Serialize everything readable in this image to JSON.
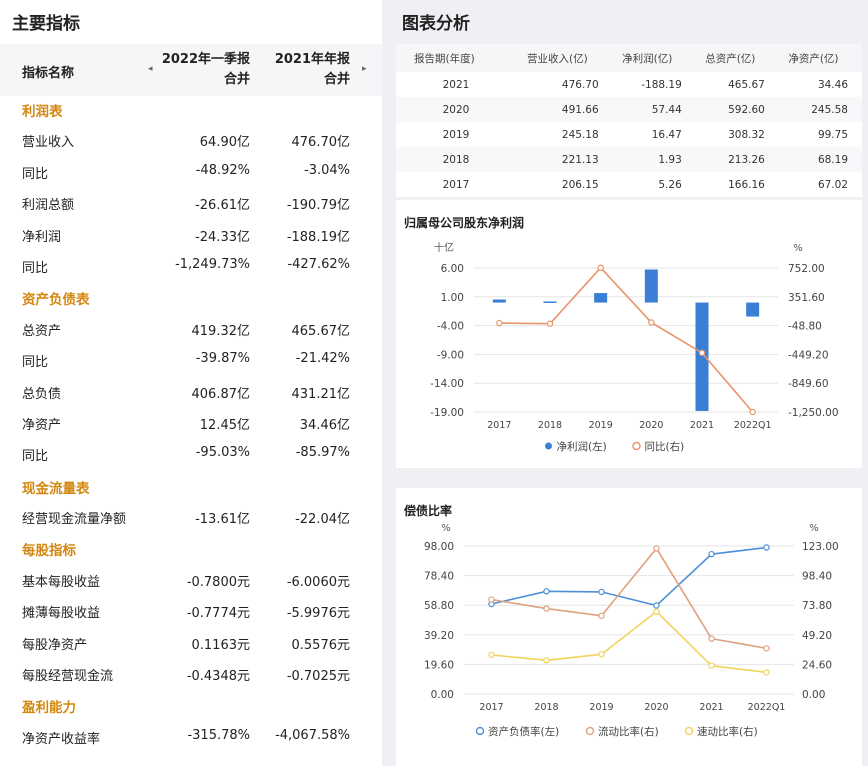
{
  "indicators": {
    "title": "主要指标",
    "header": {
      "name": "指标名称",
      "col1": "2022年一季报合并",
      "col1_a": "2022年一季报",
      "col1_b": "合并",
      "col2_a": "2021年年报",
      "col2_b": "合并"
    },
    "rows": [
      {
        "type": "section",
        "label": "利润表"
      },
      {
        "label": "营业收入",
        "v1": "64.90亿",
        "v2": "476.70亿"
      },
      {
        "label": "同比",
        "v1": "-48.92%",
        "v2": "-3.04%"
      },
      {
        "label": "利润总额",
        "v1": "-26.61亿",
        "v2": "-190.79亿"
      },
      {
        "label": "净利润",
        "v1": "-24.33亿",
        "v2": "-188.19亿"
      },
      {
        "label": "同比",
        "v1": "-1,249.73%",
        "v2": "-427.62%"
      },
      {
        "type": "section",
        "label": "资产负债表"
      },
      {
        "label": "总资产",
        "v1": "419.32亿",
        "v2": "465.67亿"
      },
      {
        "label": "同比",
        "v1": "-39.87%",
        "v2": "-21.42%"
      },
      {
        "label": "总负债",
        "v1": "406.87亿",
        "v2": "431.21亿"
      },
      {
        "label": "净资产",
        "v1": "12.45亿",
        "v2": "34.46亿"
      },
      {
        "label": "同比",
        "v1": "-95.03%",
        "v2": "-85.97%"
      },
      {
        "type": "section",
        "label": "现金流量表"
      },
      {
        "label": "经营现金流量净额",
        "v1": "-13.61亿",
        "v2": "-22.04亿"
      },
      {
        "type": "section",
        "label": "每股指标"
      },
      {
        "label": "基本每股收益",
        "v1": "-0.7800元",
        "v2": "-6.0060元"
      },
      {
        "label": "摊薄每股收益",
        "v1": "-0.7774元",
        "v2": "-5.9976元"
      },
      {
        "label": "每股净资产",
        "v1": "0.1163元",
        "v2": "0.5576元"
      },
      {
        "label": "每股经营现金流",
        "v1": "-0.4348元",
        "v2": "-0.7025元"
      },
      {
        "type": "section",
        "label": "盈利能力"
      },
      {
        "label": "净资产收益率",
        "v1": "-315.78%",
        "v2": "-4,067.58%"
      }
    ]
  },
  "analysis": {
    "title": "图表分析",
    "table": {
      "headers": [
        "报告期(年度)",
        "营业收入(亿)",
        "净利润(亿)",
        "总资产(亿)",
        "净资产(亿)"
      ],
      "rows": [
        [
          "2021",
          "476.70",
          "-188.19",
          "465.67",
          "34.46"
        ],
        [
          "2020",
          "491.66",
          "57.44",
          "592.60",
          "245.58"
        ],
        [
          "2019",
          "245.18",
          "16.47",
          "308.32",
          "99.75"
        ],
        [
          "2018",
          "221.13",
          "1.93",
          "213.26",
          "68.19"
        ],
        [
          "2017",
          "206.15",
          "5.26",
          "166.16",
          "67.02"
        ]
      ]
    }
  },
  "chart_data": [
    {
      "type": "bar",
      "title": "归属母公司股东净利润",
      "categories": [
        "2017",
        "2018",
        "2019",
        "2020",
        "2021",
        "2022Q1"
      ],
      "left_unit": "十亿",
      "right_unit": "%",
      "left_ticks": [
        "6.00",
        "1.00",
        "-4.00",
        "-9.00",
        "-14.00",
        "-19.00"
      ],
      "right_ticks": [
        "752.00",
        "351.60",
        "-48.80",
        "-449.20",
        "-849.60",
        "-1,250.00"
      ],
      "ylim_left": [
        -19,
        6
      ],
      "ylim_right": [
        -1250,
        752
      ],
      "series": [
        {
          "name": "净利润(左)",
          "type": "bar",
          "axis": "left",
          "color": "#3a7fd5",
          "values": [
            0.53,
            0.19,
            1.65,
            5.74,
            -18.82,
            -2.43
          ]
        },
        {
          "name": "同比(右)",
          "type": "line",
          "axis": "right",
          "color": "#e8956a",
          "values": [
            -13.25,
            -22.27,
            755.89,
            -5.4,
            -427.62,
            -1249.73
          ]
        }
      ],
      "legend": "bottom"
    },
    {
      "type": "line",
      "title": "偿债比率",
      "categories": [
        "2017",
        "2018",
        "2019",
        "2020",
        "2021",
        "2022Q1"
      ],
      "left_unit": "%",
      "right_unit": "%",
      "left_ticks": [
        "98.00",
        "78.40",
        "58.80",
        "39.20",
        "19.60",
        "0.00"
      ],
      "right_ticks": [
        "123.00",
        "98.40",
        "73.80",
        "49.20",
        "24.60",
        "0.00"
      ],
      "ylim_left": [
        0,
        98
      ],
      "ylim_right": [
        0,
        123
      ],
      "series": [
        {
          "name": "资产负债率(左)",
          "axis": "left",
          "color": "#4e8fd8",
          "values": [
            59.6,
            68.0,
            67.6,
            58.6,
            92.6,
            97.0
          ]
        },
        {
          "name": "流动比率(右)",
          "axis": "right",
          "color": "#e0a080",
          "values": [
            78.5,
            71.0,
            65.0,
            121.0,
            46.0,
            38.0
          ]
        },
        {
          "name": "速动比率(右)",
          "axis": "right",
          "color": "#f2d45a",
          "values": [
            32.5,
            28.0,
            33.0,
            68.5,
            23.5,
            18.0
          ]
        }
      ],
      "legend": "bottom"
    }
  ]
}
